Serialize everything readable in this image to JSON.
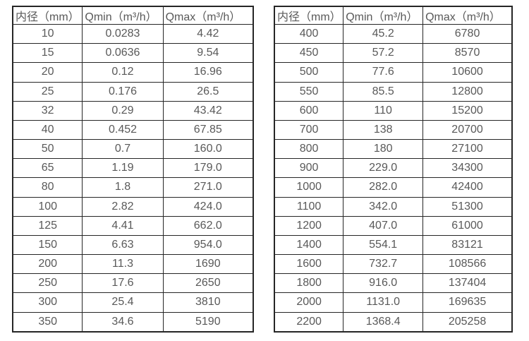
{
  "tables": [
    {
      "name": "flow-spec-table-dn10-350",
      "headers": [
        "内径（mm）",
        "Qmin（m³/h）",
        "Qmax（m³/h）"
      ],
      "rows": [
        [
          "10",
          "0.0283",
          "4.42"
        ],
        [
          "15",
          "0.0636",
          "9.54"
        ],
        [
          "20",
          "0.12",
          "16.96"
        ],
        [
          "25",
          "0.176",
          "26.5"
        ],
        [
          "32",
          "0.29",
          "43.42"
        ],
        [
          "40",
          "0.452",
          "67.85"
        ],
        [
          "50",
          "0.7",
          "160.0"
        ],
        [
          "65",
          "1.19",
          "179.0"
        ],
        [
          "80",
          "1.8",
          "271.0"
        ],
        [
          "100",
          "2.82",
          "424.0"
        ],
        [
          "125",
          "4.41",
          "662.0"
        ],
        [
          "150",
          "6.63",
          "954.0"
        ],
        [
          "200",
          "11.3",
          "1690"
        ],
        [
          "250",
          "17.6",
          "2650"
        ],
        [
          "300",
          "25.4",
          "3810"
        ],
        [
          "350",
          "34.6",
          "5190"
        ]
      ]
    },
    {
      "name": "flow-spec-table-dn400-2200",
      "headers": [
        "内径（mm）",
        "Qmin（m³/h）",
        "Qmax（m³/h）"
      ],
      "rows": [
        [
          "400",
          "45.2",
          "6780"
        ],
        [
          "450",
          "57.2",
          "8570"
        ],
        [
          "500",
          "77.6",
          "10600"
        ],
        [
          "550",
          "85.5",
          "12800"
        ],
        [
          "600",
          "110",
          "15200"
        ],
        [
          "700",
          "138",
          "20700"
        ],
        [
          "800",
          "180",
          "27100"
        ],
        [
          "900",
          "229.0",
          "34300"
        ],
        [
          "1000",
          "282.0",
          "42400"
        ],
        [
          "1100",
          "342.0",
          "51300"
        ],
        [
          "1200",
          "407.0",
          "61000"
        ],
        [
          "1400",
          "554.1",
          "83121"
        ],
        [
          "1600",
          "732.7",
          "108566"
        ],
        [
          "1800",
          "916.0",
          "137404"
        ],
        [
          "2000",
          "1131.0",
          "169635"
        ],
        [
          "2200",
          "1368.4",
          "205258"
        ]
      ]
    }
  ],
  "style": {
    "border_color": "#262626",
    "text_color": "#595959",
    "background": "#ffffff"
  }
}
